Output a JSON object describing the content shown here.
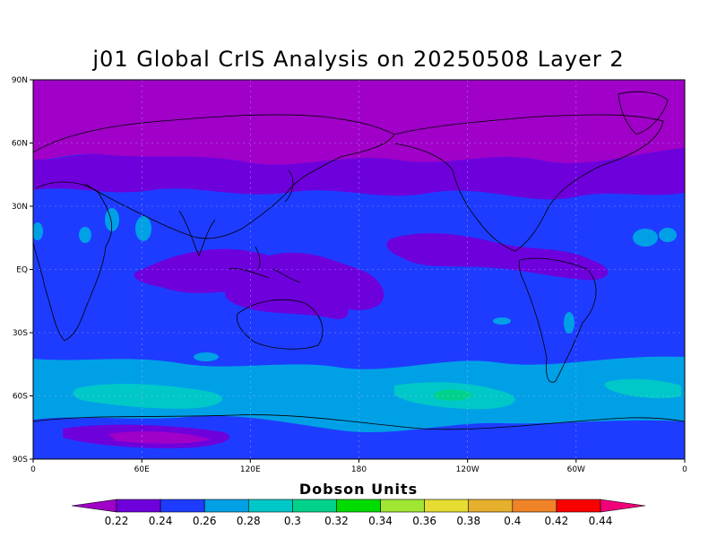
{
  "title": "j01 Global CrIS Analysis on 20250508 Layer 2",
  "colorbar_label": "Dobson Units",
  "lat_ticks": [
    "90N",
    "60N",
    "30N",
    "EQ",
    "30S",
    "60S",
    "90S"
  ],
  "lon_ticks": [
    "0",
    "60E",
    "120E",
    "180",
    "120W",
    "60W",
    "0"
  ],
  "colorbar": {
    "ticks": [
      "0.22",
      "0.24",
      "0.26",
      "0.28",
      "0.3",
      "0.32",
      "0.34",
      "0.36",
      "0.38",
      "0.4",
      "0.42",
      "0.44"
    ],
    "colors": [
      "#a000c8",
      "#6e00dc",
      "#1e3cff",
      "#00a0e6",
      "#00c8c8",
      "#00d28c",
      "#00dc00",
      "#a0e632",
      "#e6dc32",
      "#e6af2d",
      "#f08228",
      "#fa0000",
      "#f0007a"
    ]
  },
  "palette": {
    "c022": "#a000c8",
    "c024": "#6e00dc",
    "c026": "#1e3cff",
    "c028": "#00a0e6",
    "c030": "#00c8c8",
    "c032": "#00d28c"
  }
}
